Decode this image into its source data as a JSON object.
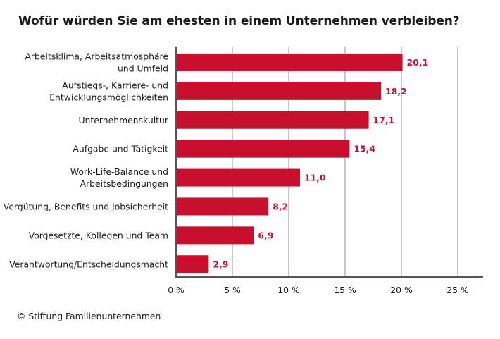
{
  "title": "Wofür würden Sie am ehesten in einem Unternehmen verbleiben?",
  "source": "© Stiftung Familienunternehmen",
  "colors": {
    "bar": "#c8102e",
    "value_label": "#c8102e",
    "grid": "#c8c8c8",
    "axis": "#555555"
  },
  "chart_data": {
    "type": "bar",
    "orientation": "horizontal",
    "categories": [
      [
        "Arbeitsklima, Arbeitsatmosphäre",
        "und Umfeld"
      ],
      [
        "Aufstiegs-, Karriere- und",
        "Entwicklungsmöglichkeiten"
      ],
      [
        "Unternehmenskultur"
      ],
      [
        "Aufgabe und Tätigkeit"
      ],
      [
        "Work-Life-Balance und",
        "Arbeitsbedingungen"
      ],
      [
        "Vergütung, Benefits und Jobsicherheit"
      ],
      [
        "Vorgesetzte, Kollegen und Team"
      ],
      [
        "Verantwortung/Entscheidungsmacht"
      ]
    ],
    "values": [
      20.1,
      18.2,
      17.1,
      15.4,
      11.0,
      8.2,
      6.9,
      2.9
    ],
    "value_labels": [
      "20,1",
      "18,2",
      "17,1",
      "15,4",
      "11,0",
      "8,2",
      "6,9",
      "2,9"
    ],
    "xlim": [
      0,
      25
    ],
    "x_ticks": [
      0,
      5,
      10,
      15,
      20,
      25
    ],
    "x_tick_labels": [
      "0 %",
      "5 %",
      "10 %",
      "15 %",
      "20 %",
      "25 %"
    ],
    "grid": "vertical"
  }
}
